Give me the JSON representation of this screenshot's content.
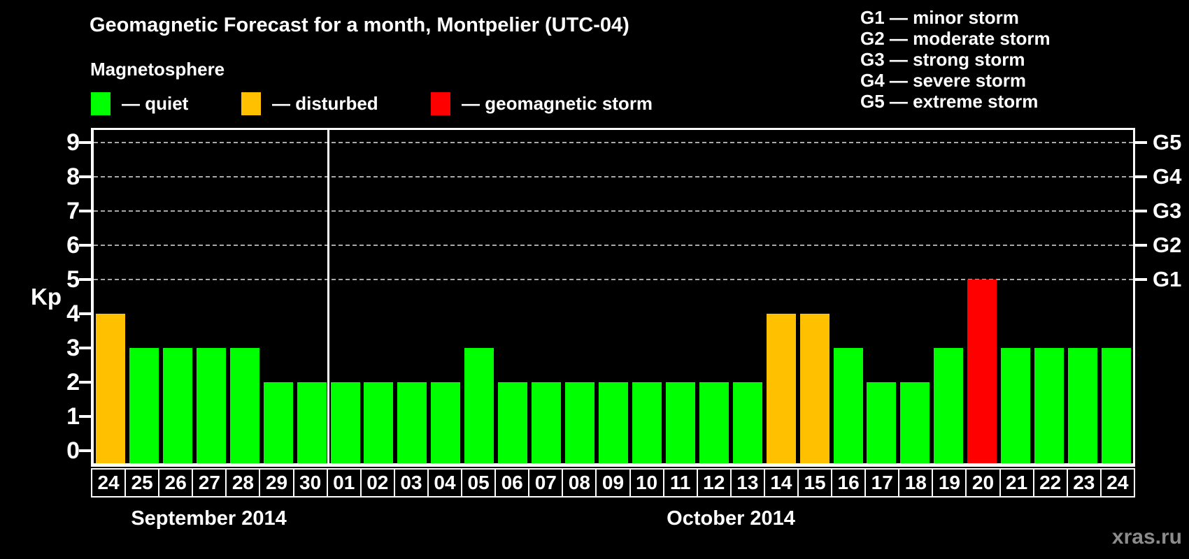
{
  "title": "Geomagnetic Forecast for a month, Montpelier (UTC-04)",
  "watermark": "xras.ru",
  "storm_scale": [
    "G1 — minor storm",
    "G2 — moderate storm",
    "G3 — strong storm",
    "G4 — severe storm",
    "G5 — extreme storm"
  ],
  "legend": {
    "title": "Magnetosphere",
    "items": [
      {
        "status": "quiet",
        "label": "— quiet"
      },
      {
        "status": "disturbed",
        "label": "— disturbed"
      },
      {
        "status": "storm",
        "label": "— geomagnetic storm"
      }
    ]
  },
  "chart_data": {
    "type": "bar",
    "title": "Geomagnetic Forecast for a month, Montpelier (UTC-04)",
    "ylabel": "Kp",
    "ylim": [
      0,
      9
    ],
    "yticks": [
      0,
      1,
      2,
      3,
      4,
      5,
      6,
      7,
      8,
      9
    ],
    "gridlines_at": [
      5,
      6,
      7,
      8,
      9
    ],
    "grid": "dashed, only at storm levels",
    "legend_position": "top-left",
    "right_axis": [
      {
        "kp": 5,
        "label": "G1"
      },
      {
        "kp": 6,
        "label": "G2"
      },
      {
        "kp": 7,
        "label": "G3"
      },
      {
        "kp": 8,
        "label": "G4"
      },
      {
        "kp": 9,
        "label": "G5"
      }
    ],
    "sections": [
      {
        "label": "September 2014",
        "start": 0,
        "count": 7
      },
      {
        "label": "October 2014",
        "start": 7,
        "count": 24
      }
    ],
    "categories": [
      "24",
      "25",
      "26",
      "27",
      "28",
      "29",
      "30",
      "01",
      "02",
      "03",
      "04",
      "05",
      "06",
      "07",
      "08",
      "09",
      "10",
      "11",
      "12",
      "13",
      "14",
      "15",
      "16",
      "17",
      "18",
      "19",
      "20",
      "21",
      "22",
      "23",
      "24"
    ],
    "values": [
      4,
      3,
      3,
      3,
      3,
      2,
      2,
      2,
      2,
      2,
      2,
      3,
      2,
      2,
      2,
      2,
      2,
      2,
      2,
      2,
      4,
      4,
      3,
      2,
      2,
      3,
      5,
      3,
      3,
      3,
      3
    ],
    "statuses": [
      "disturbed",
      "quiet",
      "quiet",
      "quiet",
      "quiet",
      "quiet",
      "quiet",
      "quiet",
      "quiet",
      "quiet",
      "quiet",
      "quiet",
      "quiet",
      "quiet",
      "quiet",
      "quiet",
      "quiet",
      "quiet",
      "quiet",
      "quiet",
      "disturbed",
      "disturbed",
      "quiet",
      "quiet",
      "quiet",
      "quiet",
      "storm",
      "quiet",
      "quiet",
      "quiet",
      "quiet"
    ],
    "status_colors": {
      "quiet": "#00ff00",
      "disturbed": "#ffc000",
      "storm": "#ff0000"
    }
  }
}
